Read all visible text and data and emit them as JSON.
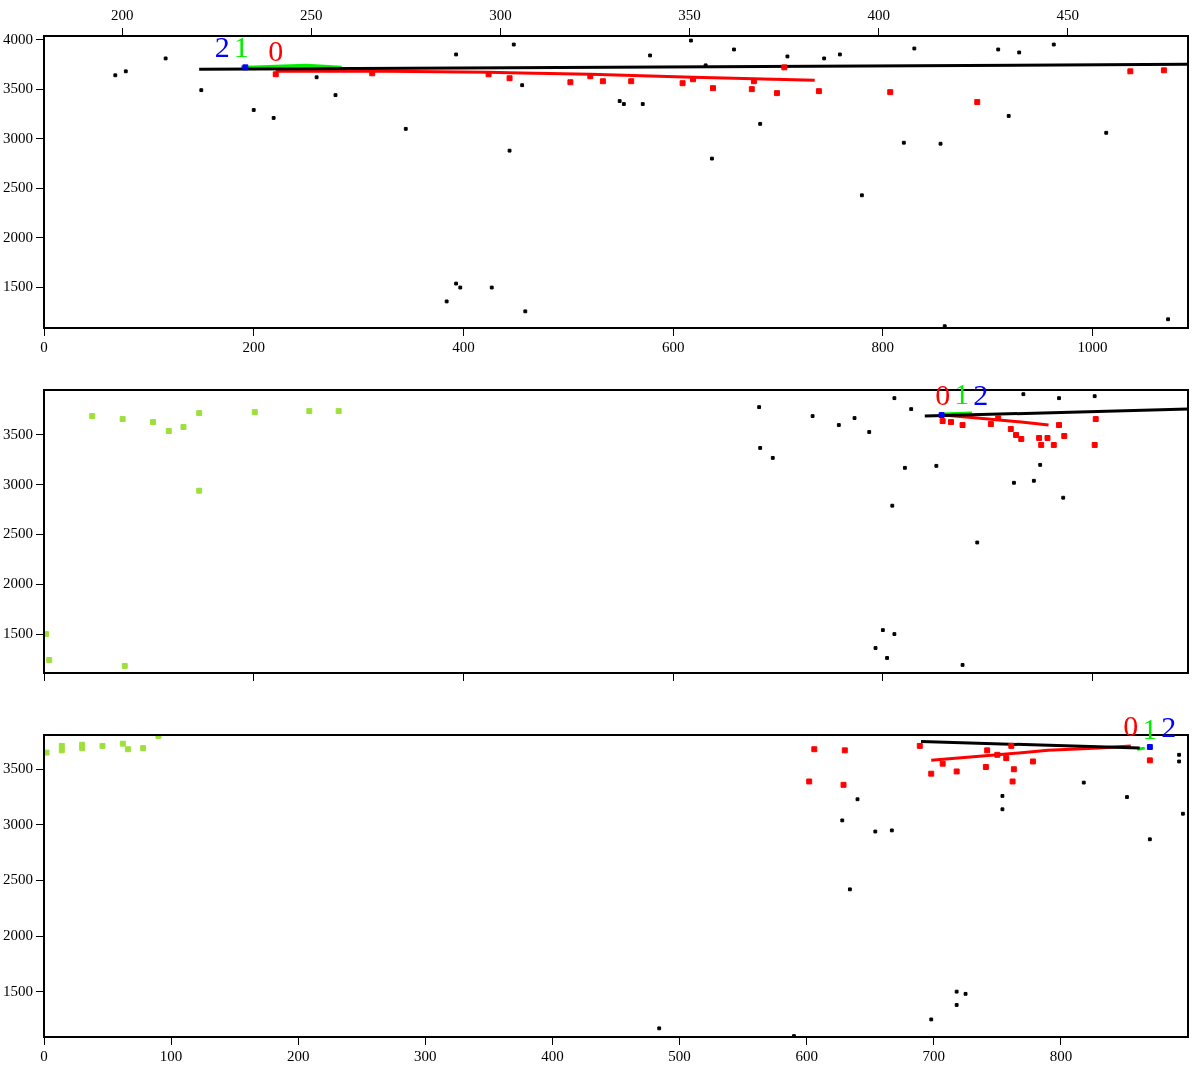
{
  "chart_data": [
    {
      "type": "scatter",
      "xlim": [
        0,
        1091
      ],
      "ylim": [
        1092,
        4036
      ],
      "xticks": [
        0,
        200,
        400,
        600,
        800,
        1000
      ],
      "yticks": [
        1500,
        2000,
        2500,
        3000,
        3500,
        4000
      ],
      "x2lim": [
        179.3,
        481.8
      ],
      "x2ticks": [
        200,
        250,
        300,
        350,
        400,
        450
      ],
      "grid": false,
      "legend": false,
      "series": [
        {
          "type": "scatter",
          "marker": "square",
          "color": "#000000",
          "x": [
            68,
            78,
            116,
            150,
            200,
            219,
            260,
            278,
            345,
            393,
            444,
            448,
            456,
            549,
            553,
            571,
            578,
            617,
            631,
            637,
            658,
            683,
            709,
            744,
            759,
            780,
            820,
            830,
            855,
            910,
            930,
            920,
            963,
            1013,
            1072,
            384,
            393,
            397,
            427,
            459,
            859
          ],
          "values": [
            3640,
            3680,
            3810,
            3490,
            3290,
            3210,
            3620,
            3440,
            3100,
            3850,
            2880,
            3950,
            3540,
            3380,
            3350,
            3350,
            3840,
            3990,
            3740,
            2800,
            3900,
            3150,
            3830,
            3810,
            3850,
            2430,
            2960,
            3910,
            2950,
            3900,
            3870,
            3230,
            3950,
            3060,
            1180,
            1360,
            1540,
            1500,
            1500,
            1260,
            1110
          ]
        },
        {
          "type": "line",
          "marker": "none",
          "color": "#000000",
          "x": [
            148,
            1091
          ],
          "values": [
            3700,
            3750
          ]
        },
        {
          "type": "line",
          "marker": "none",
          "color": "#ff0000",
          "name": "0",
          "x": [
            221,
            327,
            424,
            521,
            619,
            696,
            735
          ],
          "values": [
            3680,
            3680,
            3670,
            3650,
            3620,
            3600,
            3590
          ]
        },
        {
          "type": "scatter",
          "marker": "square",
          "color": "#ff0000",
          "x": [
            221,
            313,
            444,
            502,
            533,
            560,
            609,
            638,
            675,
            699,
            739,
            807,
            890,
            1036,
            1068,
            706,
            424,
            521,
            619,
            677
          ],
          "values": [
            3650,
            3660,
            3610,
            3570,
            3580,
            3580,
            3560,
            3510,
            3500,
            3460,
            3480,
            3470,
            3370,
            3680,
            3690,
            3720,
            3650,
            3630,
            3600,
            3580
          ]
        },
        {
          "type": "line",
          "marker": "none",
          "color": "#00ee00",
          "name": "1",
          "x": [
            188,
            221,
            250,
            284
          ],
          "values": [
            3720,
            3730,
            3740,
            3720
          ]
        },
        {
          "type": "scatter",
          "marker": "square",
          "color": "#0000ff",
          "name": "2",
          "x": [
            192
          ],
          "values": [
            3720
          ]
        }
      ]
    },
    {
      "type": "scatter",
      "xlim": [
        0,
        1091
      ],
      "ylim": [
        1109,
        3952
      ],
      "xticks": [
        0,
        200,
        400,
        600,
        800,
        1000
      ],
      "yticks": [
        1500,
        2000,
        2500,
        3000,
        3500
      ],
      "tick_labels": "y",
      "grid": false,
      "legend": false,
      "series": [
        {
          "type": "scatter",
          "marker": "square",
          "color": "#9de03a",
          "x": [
            46,
            75,
            104,
            133,
            119,
            148,
            201,
            253,
            281,
            148,
            2,
            5,
            77
          ],
          "values": [
            3690,
            3660,
            3630,
            3580,
            3540,
            3720,
            3730,
            3740,
            3740,
            2940,
            1500,
            1240,
            1180
          ]
        },
        {
          "type": "scatter",
          "marker": "square",
          "color": "#000000",
          "x": [
            682,
            683,
            695,
            733,
            758,
            773,
            787,
            821,
            827,
            809,
            851,
            890,
            800,
            811,
            793,
            804,
            876,
            950,
            972,
            944,
            925,
            934,
            968,
            1002,
            811
          ],
          "values": [
            3780,
            3370,
            3270,
            3690,
            3600,
            3670,
            3530,
            3170,
            3760,
            2790,
            3190,
            2420,
            1540,
            1500,
            1360,
            1260,
            1190,
            3200,
            2870,
            3040,
            3020,
            3910,
            3870,
            3890,
            3870
          ]
        },
        {
          "type": "line",
          "marker": "none",
          "color": "#000000",
          "x": [
            840,
            1091
          ],
          "values": [
            3690,
            3760
          ]
        },
        {
          "type": "line",
          "marker": "none",
          "color": "#ff0000",
          "name": "0",
          "x": [
            857,
            890,
            932,
            958
          ],
          "values": [
            3700,
            3670,
            3630,
            3600
          ]
        },
        {
          "type": "scatter",
          "marker": "square",
          "color": "#ff0000",
          "x": [
            857,
            865,
            876,
            903,
            922,
            927,
            932,
            949,
            951,
            957,
            963,
            968,
            1003,
            1002,
            973,
            910
          ],
          "values": [
            3640,
            3630,
            3600,
            3610,
            3560,
            3500,
            3460,
            3470,
            3400,
            3470,
            3400,
            3600,
            3660,
            3400,
            3490,
            3670
          ]
        },
        {
          "type": "line",
          "marker": "none",
          "color": "#00ee00",
          "name": "1",
          "x": [
            856,
            885
          ],
          "values": [
            3710,
            3720
          ]
        },
        {
          "type": "scatter",
          "marker": "square",
          "color": "#0000ff",
          "name": "2",
          "x": [
            856
          ],
          "values": [
            3700
          ]
        }
      ]
    },
    {
      "type": "scatter",
      "xlim": [
        0,
        900
      ],
      "ylim": [
        1092,
        3808
      ],
      "xticks": [
        0,
        100,
        200,
        300,
        400,
        500,
        600,
        700,
        800
      ],
      "yticks": [
        1500,
        2000,
        2500,
        3000,
        3500
      ],
      "grid": false,
      "legend": false,
      "series": [
        {
          "type": "scatter",
          "marker": "square",
          "color": "#9de03a",
          "x": [
            2,
            14,
            30,
            46,
            62,
            66,
            78,
            14,
            30,
            90
          ],
          "values": [
            3650,
            3670,
            3690,
            3710,
            3730,
            3680,
            3690,
            3710,
            3720,
            3800
          ]
        },
        {
          "type": "scatter",
          "marker": "square",
          "color": "#000000",
          "x": [
            640,
            628,
            634,
            654,
            667,
            754,
            754,
            818,
            852,
            870,
            893,
            893,
            896,
            718,
            725,
            718,
            698,
            484,
            590
          ],
          "values": [
            3230,
            3040,
            2420,
            2940,
            2950,
            3260,
            3140,
            3380,
            3250,
            2870,
            3630,
            3570,
            3100,
            1500,
            1480,
            1380,
            1250,
            1170,
            1100
          ]
        },
        {
          "type": "line",
          "marker": "none",
          "color": "#000000",
          "x": [
            690,
            862
          ],
          "values": [
            3750,
            3690
          ]
        },
        {
          "type": "line",
          "marker": "none",
          "color": "#ff0000",
          "name": "0",
          "x": [
            855,
            830,
            790,
            750,
            698
          ],
          "values": [
            3710,
            3690,
            3670,
            3630,
            3580
          ]
        },
        {
          "type": "scatter",
          "marker": "square",
          "color": "#ff0000",
          "x": [
            606,
            630,
            689,
            698,
            707,
            718,
            741,
            750,
            742,
            757,
            761,
            763,
            778,
            762,
            602,
            629,
            870
          ],
          "values": [
            3680,
            3670,
            3710,
            3460,
            3550,
            3480,
            3520,
            3630,
            3670,
            3600,
            3710,
            3500,
            3570,
            3390,
            3390,
            3360,
            3580
          ]
        },
        {
          "type": "line",
          "marker": "none",
          "color": "#00ee00",
          "name": "1",
          "x": [
            860,
            866
          ],
          "values": [
            3680,
            3690
          ]
        },
        {
          "type": "scatter",
          "marker": "square",
          "color": "#0000ff",
          "name": "2",
          "x": [
            870
          ],
          "values": [
            3700
          ]
        }
      ]
    }
  ]
}
